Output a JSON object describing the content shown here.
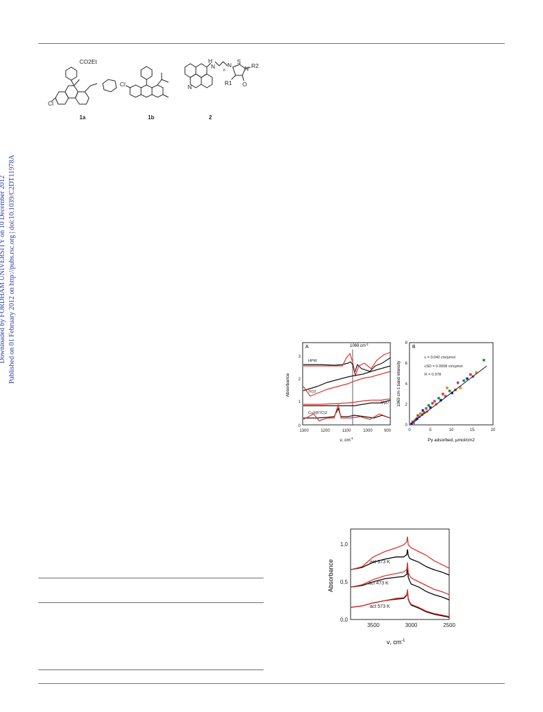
{
  "sidebar": {
    "line1": "Downloaded by FORDHAM UNIVERSITY on 10 December 2012",
    "line2": "Published on 01 February 2012 on http://pubs.rsc.org | doi:10.1039/C2DT11978A"
  },
  "scheme": {
    "compounds": [
      {
        "id": "1a",
        "label": "1a",
        "ester": "CO2Et",
        "halogen": "Cl"
      },
      {
        "id": "1b",
        "label": "1b",
        "halogen": "Cl"
      },
      {
        "id": "2",
        "label": "2",
        "atoms": [
          "H",
          "N",
          "n",
          "N",
          "S",
          "N",
          "R2",
          "R1",
          "O",
          "N"
        ]
      }
    ]
  },
  "figure1": {
    "panelA": {
      "label": "A",
      "marker": "1069 cm",
      "marker_sup": "-1",
      "ylabel": "Absorbance",
      "xlabel": "ν, cm",
      "xlabel_sup": "-1",
      "xticks": [
        "1300",
        "1200",
        "1100",
        "1000",
        "900"
      ],
      "yticks": [
        "0",
        "1",
        "2",
        "3"
      ],
      "sample_labels": [
        "HPW",
        "TiO2",
        "MgO",
        "Cu3(BTC)2"
      ]
    },
    "panelB": {
      "label": "B",
      "annot": [
        "ε = 0.042 cm/µmol",
        "εSD = 0.0008 cm/µmol",
        "R = 0.978"
      ],
      "ylabel": "1069 cm-1 band intensity",
      "xlabel": "Py adsorbed, µmol/cm2",
      "xticks": [
        "0",
        "5",
        "10",
        "15",
        "20"
      ],
      "yticks": [
        "0",
        "2",
        "4",
        "6",
        "8"
      ]
    }
  },
  "figure2": {
    "ylabel": "Absorbance",
    "xlabel": "ν, cm",
    "xlabel_sup": "-1",
    "xticks": [
      "3500",
      "3000",
      "2500"
    ],
    "yticks": [
      "0,0",
      "0,5",
      "1,0"
    ],
    "curve_labels": [
      "act 373 K",
      "act 473 K",
      "act 573 K"
    ]
  },
  "chart_data": [
    {
      "type": "scatter",
      "title": "",
      "xlabel": "Py adsorbed, µmol/cm2",
      "ylabel": "1069 cm-1 band intensity",
      "xlim": [
        0,
        20
      ],
      "ylim": [
        0,
        8
      ],
      "grid": false,
      "colors": [
        "#1a2fa6",
        "#d63a2b",
        "#a8489e",
        "#e38a2a",
        "#1e8e3e"
      ],
      "points": [
        {
          "x": 0.5,
          "y": 0.1
        },
        {
          "x": 0.8,
          "y": 0.3
        },
        {
          "x": 1.0,
          "y": 0.2
        },
        {
          "x": 1.2,
          "y": 0.4
        },
        {
          "x": 1.5,
          "y": 0.5
        },
        {
          "x": 1.8,
          "y": 0.6
        },
        {
          "x": 2.0,
          "y": 0.9
        },
        {
          "x": 2.3,
          "y": 0.8
        },
        {
          "x": 2.6,
          "y": 1.1
        },
        {
          "x": 3.0,
          "y": 1.0
        },
        {
          "x": 3.2,
          "y": 1.4
        },
        {
          "x": 3.5,
          "y": 1.2
        },
        {
          "x": 4.0,
          "y": 1.6
        },
        {
          "x": 4.2,
          "y": 1.3
        },
        {
          "x": 4.6,
          "y": 1.9
        },
        {
          "x": 5.0,
          "y": 1.7
        },
        {
          "x": 5.5,
          "y": 2.1
        },
        {
          "x": 6.0,
          "y": 2.3
        },
        {
          "x": 6.4,
          "y": 2.0
        },
        {
          "x": 7.0,
          "y": 2.6
        },
        {
          "x": 7.5,
          "y": 2.4
        },
        {
          "x": 8.0,
          "y": 3.0
        },
        {
          "x": 8.6,
          "y": 2.8
        },
        {
          "x": 9.0,
          "y": 3.6
        },
        {
          "x": 9.6,
          "y": 3.3
        },
        {
          "x": 10.2,
          "y": 3.1
        },
        {
          "x": 11.0,
          "y": 3.4
        },
        {
          "x": 11.6,
          "y": 4.1
        },
        {
          "x": 12.2,
          "y": 3.6
        },
        {
          "x": 13.0,
          "y": 4.3
        },
        {
          "x": 13.8,
          "y": 4.5
        },
        {
          "x": 14.6,
          "y": 4.9
        },
        {
          "x": 15.2,
          "y": 4.7
        },
        {
          "x": 16.0,
          "y": 5.1
        },
        {
          "x": 17.8,
          "y": 6.3
        }
      ],
      "fit": {
        "slope": 0.31,
        "intercept": 0
      }
    },
    {
      "type": "line",
      "title": "",
      "xlabel": "ν, cm-1",
      "ylabel": "Absorbance",
      "xlim": [
        3800,
        2500
      ],
      "ylim": [
        0,
        1.2
      ],
      "x_reversed": true,
      "series": [
        {
          "label": "act 373 K",
          "color": "#000000",
          "x": [
            3800,
            3650,
            3500,
            3350,
            3200,
            3100,
            3060,
            3050,
            3040,
            3020,
            3000,
            2900,
            2800,
            2700,
            2600,
            2500
          ],
          "y": [
            0.66,
            0.69,
            0.76,
            0.8,
            0.83,
            0.83,
            0.86,
            0.93,
            0.85,
            0.81,
            0.8,
            0.76,
            0.7,
            0.66,
            0.63,
            0.59
          ]
        },
        {
          "label": "act 373 K",
          "color": "#e0302a",
          "x": [
            3800,
            3650,
            3500,
            3350,
            3200,
            3100,
            3060,
            3050,
            3040,
            3020,
            3000,
            2900,
            2800,
            2700,
            2600,
            2500
          ],
          "y": [
            0.66,
            0.7,
            0.83,
            0.9,
            0.95,
            0.99,
            1.03,
            1.1,
            0.99,
            0.97,
            0.95,
            0.9,
            0.85,
            0.78,
            0.73,
            0.68
          ]
        },
        {
          "label": "act 473 K",
          "color": "#000000",
          "x": [
            3800,
            3650,
            3500,
            3350,
            3200,
            3100,
            3060,
            3050,
            3040,
            3020,
            3000,
            2900,
            2800,
            2700,
            2600,
            2500
          ],
          "y": [
            0.43,
            0.45,
            0.5,
            0.54,
            0.56,
            0.57,
            0.6,
            0.7,
            0.56,
            0.51,
            0.47,
            0.43,
            0.37,
            0.33,
            0.3,
            0.26
          ]
        },
        {
          "label": "act 473 K",
          "color": "#e0302a",
          "x": [
            3800,
            3650,
            3500,
            3350,
            3200,
            3100,
            3060,
            3050,
            3040,
            3020,
            3000,
            2900,
            2800,
            2700,
            2600,
            2500
          ],
          "y": [
            0.43,
            0.46,
            0.53,
            0.58,
            0.61,
            0.63,
            0.66,
            0.76,
            0.62,
            0.58,
            0.55,
            0.5,
            0.45,
            0.4,
            0.37,
            0.33
          ]
        },
        {
          "label": "act 573 K",
          "color": "#000000",
          "x": [
            3800,
            3650,
            3500,
            3350,
            3200,
            3100,
            3060,
            3050,
            3040,
            3020,
            3000,
            2900,
            2800,
            2700,
            2600,
            2500
          ],
          "y": [
            0.16,
            0.18,
            0.22,
            0.25,
            0.27,
            0.28,
            0.32,
            0.38,
            0.27,
            0.22,
            0.19,
            0.15,
            0.1,
            0.07,
            0.05,
            0.03
          ]
        },
        {
          "label": "act 573 K",
          "color": "#e0302a",
          "x": [
            3800,
            3650,
            3500,
            3350,
            3200,
            3100,
            3060,
            3050,
            3040,
            3020,
            3000,
            2900,
            2800,
            2700,
            2600,
            2500
          ],
          "y": [
            0.16,
            0.18,
            0.22,
            0.25,
            0.28,
            0.29,
            0.33,
            0.4,
            0.28,
            0.23,
            0.2,
            0.16,
            0.11,
            0.08,
            0.06,
            0.04
          ]
        }
      ]
    }
  ]
}
